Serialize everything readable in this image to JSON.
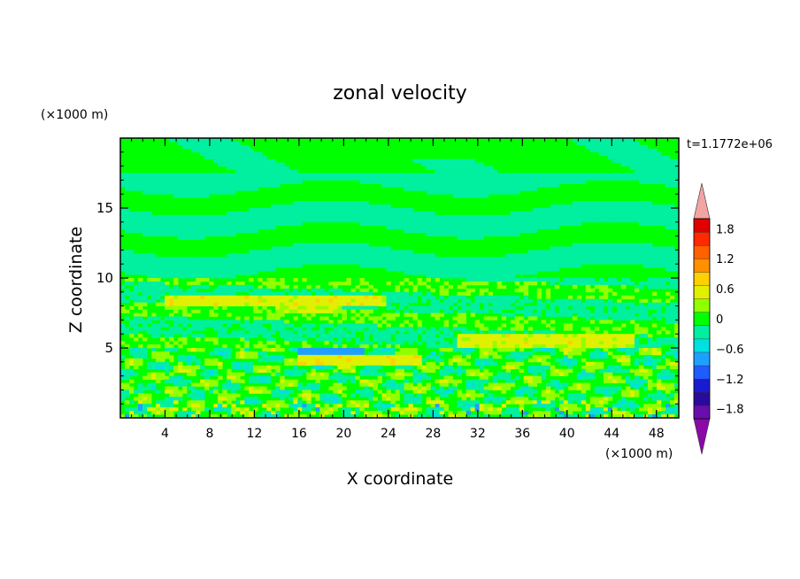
{
  "chart_data": {
    "type": "heatmap",
    "title": "zonal velocity",
    "xlabel": "X coordinate",
    "ylabel": "Z coordinate",
    "x_unit": "(×1000 m)",
    "y_unit": "(×1000 m)",
    "time_label": "t=1.1772e+06",
    "xlim": [
      0,
      50
    ],
    "ylim": [
      0,
      20
    ],
    "x_ticks": [
      "4",
      "8",
      "12",
      "16",
      "20",
      "24",
      "28",
      "32",
      "36",
      "40",
      "44",
      "48"
    ],
    "y_ticks": [
      "5",
      "10",
      "15"
    ],
    "x_tick_values": [
      4,
      8,
      12,
      16,
      20,
      24,
      28,
      32,
      36,
      40,
      44,
      48
    ],
    "y_tick_values": [
      5,
      10,
      15
    ],
    "colorbar": {
      "min": -2.0,
      "max": 2.0,
      "labels": [
        "1.8",
        "1.2",
        "0.6",
        "0",
        "−0.6",
        "−1.2",
        "−1.8"
      ],
      "label_values": [
        1.8,
        1.2,
        0.6,
        0,
        -0.6,
        -1.2,
        -1.8
      ],
      "colors": [
        "#6a0dad",
        "#2a0a9a",
        "#1a1ad0",
        "#1e5cff",
        "#1ea0ff",
        "#00e0e0",
        "#00f0a0",
        "#00ff00",
        "#90ff00",
        "#e0f000",
        "#ffd000",
        "#ff9000",
        "#ff6000",
        "#ff2a00",
        "#e00000"
      ],
      "over_color": "#f4a3a3",
      "under_color": "#8a0aa8"
    },
    "bands": [
      {
        "z_min": 17.5,
        "z_max": 20,
        "value": 0.0,
        "note": "green"
      },
      {
        "z_min": 10,
        "z_max": 17.5,
        "value": -0.2,
        "note": "mixed green / aquamarine"
      },
      {
        "z_min": 5,
        "z_max": 10,
        "value": 0.1,
        "note": "green with yellow streaks"
      },
      {
        "z_min": 0,
        "z_max": 5,
        "value": 0.0,
        "note": "turbulent mix"
      }
    ]
  }
}
